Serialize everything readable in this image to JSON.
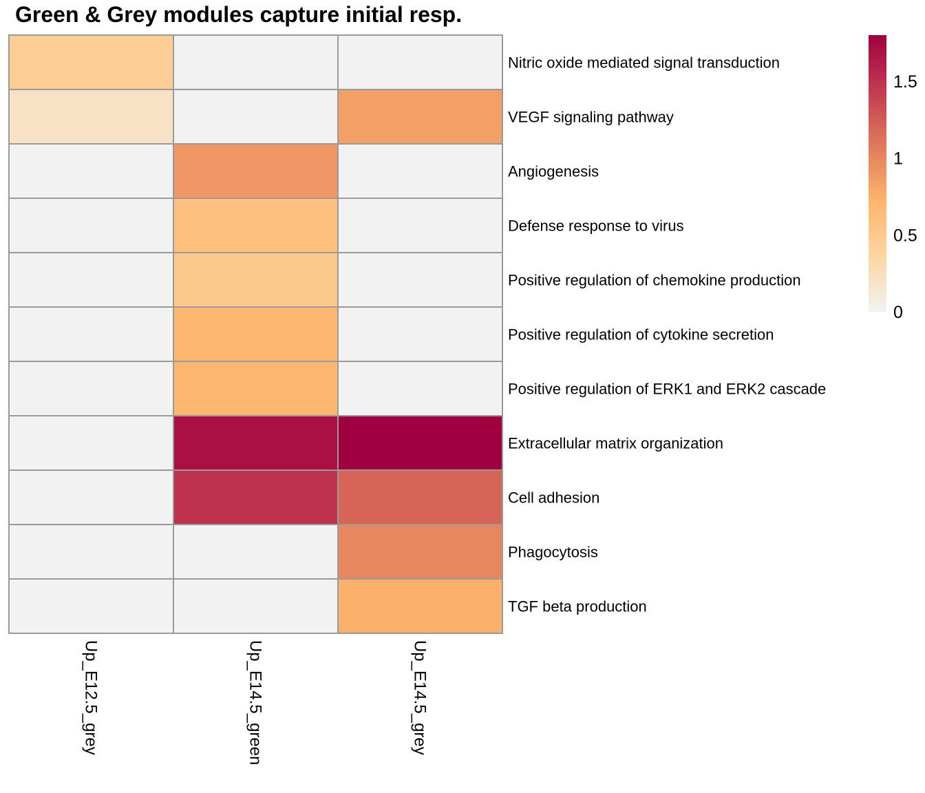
{
  "chart_data": {
    "type": "heatmap",
    "title": "Green & Grey modules capture initial resp.",
    "columns": [
      "Up_E12.5_grey",
      "Up_E14.5_green",
      "Up_E14.5_grey"
    ],
    "rows": [
      "Nitric oxide mediated signal transduction",
      "VEGF signaling pathway",
      "Angiogenesis",
      "Defense response to virus",
      "Positive regulation of chemokine production",
      "Positive regulation of cytokine secretion",
      "Positive regulation of ERK1 and ERK2 cascade",
      "Extracellular matrix organization",
      "Cell adhesion",
      "Phagocytosis",
      "TGF beta production"
    ],
    "values": [
      [
        0.45,
        0,
        0
      ],
      [
        0.2,
        0,
        0.85
      ],
      [
        0,
        0.9,
        0
      ],
      [
        0,
        0.6,
        0
      ],
      [
        0,
        0.5,
        0
      ],
      [
        0,
        0.7,
        0
      ],
      [
        0,
        0.7,
        0
      ],
      [
        0,
        1.7,
        1.8
      ],
      [
        0,
        1.5,
        1.2
      ],
      [
        0,
        0,
        1.0
      ],
      [
        0,
        0,
        0.75
      ]
    ],
    "legend": {
      "position": "right",
      "min": 0,
      "max": 1.8,
      "ticks": [
        0,
        0.5,
        1,
        1.5
      ],
      "tick_labels": [
        "0",
        "0.5",
        "1",
        "1.5"
      ]
    },
    "colors": {
      "stops": [
        "#f2f2f2",
        "#fcd6a2",
        "#fdb56d",
        "#e07a5c",
        "#c23b50",
        "#a10040"
      ],
      "cell_border": "#9a9a9a"
    }
  }
}
